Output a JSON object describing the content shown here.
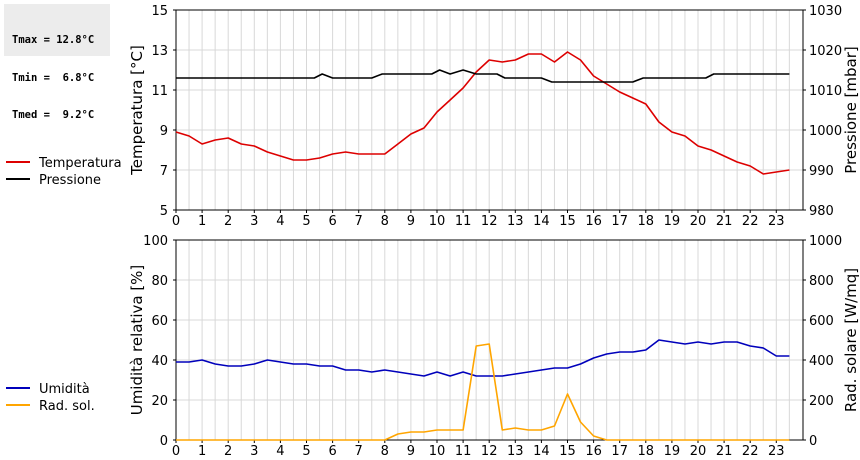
{
  "stats": {
    "tmax": "Tmax = 12.8°C",
    "tmin": "Tmin =  6.8°C",
    "tmed": "Tmed =  9.2°C"
  },
  "colors": {
    "temperature": "#dd0000",
    "pressure": "#000000",
    "humidity": "#0000bb",
    "radiation": "#ffa500",
    "grid": "#d8d8d8",
    "stats_bg": "#ececec"
  },
  "chart_data": [
    {
      "type": "line",
      "grid": true,
      "legend": "left",
      "x_ticks": [
        0,
        1,
        2,
        3,
        4,
        5,
        6,
        7,
        8,
        9,
        10,
        11,
        12,
        13,
        14,
        15,
        16,
        17,
        18,
        19,
        20,
        21,
        22,
        23
      ],
      "xlim": [
        0,
        24
      ],
      "ylabel": "Temperatura [°C]",
      "ylim": [
        5,
        15
      ],
      "yticks": [
        5,
        7,
        9,
        11,
        13,
        15
      ],
      "ylabel_right": "Pressione [mbar]",
      "ylim_right": [
        980,
        1030
      ],
      "yticks_right": [
        980,
        990,
        1000,
        1010,
        1020,
        1030
      ],
      "series": [
        {
          "name": "Temperatura",
          "axis": "left",
          "points": [
            [
              0,
              8.9
            ],
            [
              0.5,
              8.7
            ],
            [
              1,
              8.3
            ],
            [
              1.5,
              8.5
            ],
            [
              2,
              8.6
            ],
            [
              2.5,
              8.3
            ],
            [
              3,
              8.2
            ],
            [
              3.5,
              7.9
            ],
            [
              4,
              7.7
            ],
            [
              4.5,
              7.5
            ],
            [
              5,
              7.5
            ],
            [
              5.5,
              7.6
            ],
            [
              6,
              7.8
            ],
            [
              6.5,
              7.9
            ],
            [
              7,
              7.8
            ],
            [
              7.5,
              7.8
            ],
            [
              8,
              7.8
            ],
            [
              8.5,
              8.3
            ],
            [
              9,
              8.8
            ],
            [
              9.5,
              9.1
            ],
            [
              10,
              9.9
            ],
            [
              10.5,
              10.5
            ],
            [
              11,
              11.1
            ],
            [
              11.5,
              11.9
            ],
            [
              12,
              12.5
            ],
            [
              12.5,
              12.4
            ],
            [
              13,
              12.5
            ],
            [
              13.5,
              12.8
            ],
            [
              14,
              12.8
            ],
            [
              14.5,
              12.4
            ],
            [
              15,
              12.9
            ],
            [
              15.5,
              12.5
            ],
            [
              16,
              11.7
            ],
            [
              16.5,
              11.3
            ],
            [
              17,
              10.9
            ],
            [
              17.5,
              10.6
            ],
            [
              18,
              10.3
            ],
            [
              18.5,
              9.4
            ],
            [
              19,
              8.9
            ],
            [
              19.5,
              8.7
            ],
            [
              20,
              8.2
            ],
            [
              20.5,
              8.0
            ],
            [
              21,
              7.7
            ],
            [
              21.5,
              7.4
            ],
            [
              22,
              7.2
            ],
            [
              22.5,
              6.8
            ],
            [
              23,
              6.9
            ],
            [
              23.5,
              7.0
            ]
          ]
        },
        {
          "name": "Pressione",
          "axis": "right",
          "points": [
            [
              0,
              1013
            ],
            [
              5.3,
              1013
            ],
            [
              5.6,
              1014
            ],
            [
              6,
              1013
            ],
            [
              7.5,
              1013
            ],
            [
              7.9,
              1014
            ],
            [
              9.8,
              1014
            ],
            [
              10.1,
              1015
            ],
            [
              10.5,
              1014
            ],
            [
              11,
              1015
            ],
            [
              11.5,
              1014
            ],
            [
              12.3,
              1014
            ],
            [
              12.6,
              1013
            ],
            [
              14,
              1013
            ],
            [
              14.4,
              1012
            ],
            [
              17.5,
              1012
            ],
            [
              17.9,
              1013
            ],
            [
              20.3,
              1013
            ],
            [
              20.6,
              1014
            ],
            [
              23.5,
              1014
            ]
          ]
        }
      ]
    },
    {
      "type": "line",
      "grid": true,
      "legend": "left",
      "x_ticks": [
        0,
        1,
        2,
        3,
        4,
        5,
        6,
        7,
        8,
        9,
        10,
        11,
        12,
        13,
        14,
        15,
        16,
        17,
        18,
        19,
        20,
        21,
        22,
        23
      ],
      "xlim": [
        0,
        24
      ],
      "ylabel": "Umidità relativa [%]",
      "ylim": [
        0,
        100
      ],
      "yticks": [
        0,
        20,
        40,
        60,
        80,
        100
      ],
      "ylabel_right": "Rad. solare [W/mq]",
      "ylim_right": [
        0,
        1000
      ],
      "yticks_right": [
        0,
        200,
        400,
        600,
        800,
        1000
      ],
      "series": [
        {
          "name": "Umidità",
          "axis": "left",
          "points": [
            [
              0,
              39
            ],
            [
              0.5,
              39
            ],
            [
              1,
              40
            ],
            [
              1.5,
              38
            ],
            [
              2,
              37
            ],
            [
              2.5,
              37
            ],
            [
              3,
              38
            ],
            [
              3.5,
              40
            ],
            [
              4,
              39
            ],
            [
              4.5,
              38
            ],
            [
              5,
              38
            ],
            [
              5.5,
              37
            ],
            [
              6,
              37
            ],
            [
              6.5,
              35
            ],
            [
              7,
              35
            ],
            [
              7.5,
              34
            ],
            [
              8,
              35
            ],
            [
              8.5,
              34
            ],
            [
              9,
              33
            ],
            [
              9.5,
              32
            ],
            [
              10,
              34
            ],
            [
              10.5,
              32
            ],
            [
              11,
              34
            ],
            [
              11.5,
              32
            ],
            [
              12,
              32
            ],
            [
              12.5,
              32
            ],
            [
              13,
              33
            ],
            [
              13.5,
              34
            ],
            [
              14,
              35
            ],
            [
              14.5,
              36
            ],
            [
              15,
              36
            ],
            [
              15.5,
              38
            ],
            [
              16,
              41
            ],
            [
              16.5,
              43
            ],
            [
              17,
              44
            ],
            [
              17.5,
              44
            ],
            [
              18,
              45
            ],
            [
              18.5,
              50
            ],
            [
              19,
              49
            ],
            [
              19.5,
              48
            ],
            [
              20,
              49
            ],
            [
              20.5,
              48
            ],
            [
              21,
              49
            ],
            [
              21.5,
              49
            ],
            [
              22,
              47
            ],
            [
              22.5,
              46
            ],
            [
              23,
              42
            ],
            [
              23.5,
              42
            ]
          ]
        },
        {
          "name": "Rad. sol.",
          "axis": "right",
          "points": [
            [
              0,
              0
            ],
            [
              8,
              0
            ],
            [
              8.5,
              30
            ],
            [
              9,
              40
            ],
            [
              9.5,
              40
            ],
            [
              10,
              50
            ],
            [
              10.5,
              50
            ],
            [
              11,
              50
            ],
            [
              11.5,
              470
            ],
            [
              12,
              480
            ],
            [
              12.5,
              50
            ],
            [
              13,
              60
            ],
            [
              13.5,
              50
            ],
            [
              14,
              50
            ],
            [
              14.5,
              70
            ],
            [
              15,
              230
            ],
            [
              15.5,
              90
            ],
            [
              16,
              20
            ],
            [
              16.5,
              0
            ],
            [
              23.5,
              0
            ]
          ]
        }
      ]
    }
  ]
}
